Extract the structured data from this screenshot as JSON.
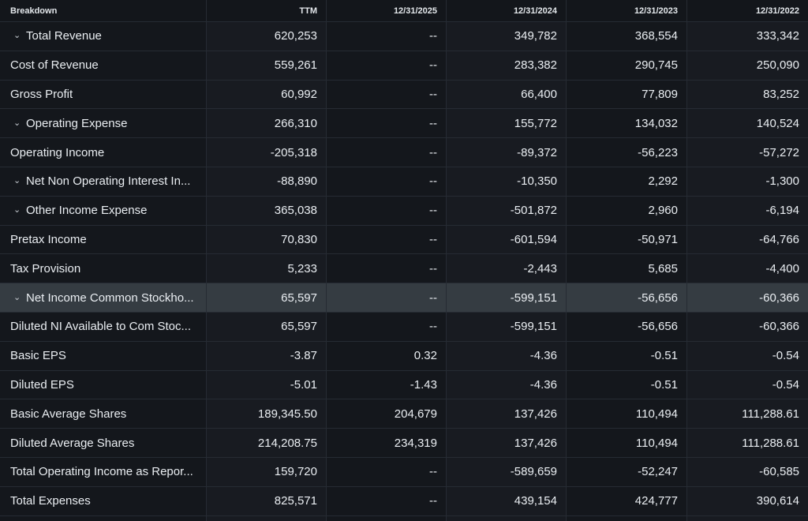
{
  "columns": [
    "Breakdown",
    "TTM",
    "12/31/2025",
    "12/31/2024",
    "12/31/2023",
    "12/31/2022"
  ],
  "rows": [
    {
      "label": "Total Revenue",
      "expandable": true,
      "values": [
        "620,253",
        "--",
        "349,782",
        "368,554",
        "333,342"
      ]
    },
    {
      "label": "Cost of Revenue",
      "expandable": false,
      "values": [
        "559,261",
        "--",
        "283,382",
        "290,745",
        "250,090"
      ]
    },
    {
      "label": "Gross Profit",
      "expandable": false,
      "values": [
        "60,992",
        "--",
        "66,400",
        "77,809",
        "83,252"
      ]
    },
    {
      "label": "Operating Expense",
      "expandable": true,
      "values": [
        "266,310",
        "--",
        "155,772",
        "134,032",
        "140,524"
      ]
    },
    {
      "label": "Operating Income",
      "expandable": false,
      "values": [
        "-205,318",
        "--",
        "-89,372",
        "-56,223",
        "-57,272"
      ]
    },
    {
      "label": "Net Non Operating Interest In...",
      "expandable": true,
      "values": [
        "-88,890",
        "--",
        "-10,350",
        "2,292",
        "-1,300"
      ]
    },
    {
      "label": "Other Income Expense",
      "expandable": true,
      "values": [
        "365,038",
        "--",
        "-501,872",
        "2,960",
        "-6,194"
      ]
    },
    {
      "label": "Pretax Income",
      "expandable": false,
      "values": [
        "70,830",
        "--",
        "-601,594",
        "-50,971",
        "-64,766"
      ]
    },
    {
      "label": "Tax Provision",
      "expandable": false,
      "values": [
        "5,233",
        "--",
        "-2,443",
        "5,685",
        "-4,400"
      ]
    },
    {
      "label": "Net Income Common Stockho...",
      "expandable": true,
      "highlight": true,
      "values": [
        "65,597",
        "--",
        "-599,151",
        "-56,656",
        "-60,366"
      ]
    },
    {
      "label": "Diluted NI Available to Com Stoc...",
      "expandable": false,
      "values": [
        "65,597",
        "--",
        "-599,151",
        "-56,656",
        "-60,366"
      ]
    },
    {
      "label": "Basic EPS",
      "expandable": false,
      "values": [
        "-3.87",
        "0.32",
        "-4.36",
        "-0.51",
        "-0.54"
      ]
    },
    {
      "label": "Diluted EPS",
      "expandable": false,
      "values": [
        "-5.01",
        "-1.43",
        "-4.36",
        "-0.51",
        "-0.54"
      ]
    },
    {
      "label": "Basic Average Shares",
      "expandable": false,
      "values": [
        "189,345.50",
        "204,679",
        "137,426",
        "110,494",
        "111,288.61"
      ]
    },
    {
      "label": "Diluted Average Shares",
      "expandable": false,
      "values": [
        "214,208.75",
        "234,319",
        "137,426",
        "110,494",
        "111,288.61"
      ]
    },
    {
      "label": "Total Operating Income as Repor...",
      "expandable": false,
      "values": [
        "159,720",
        "--",
        "-589,659",
        "-52,247",
        "-60,585"
      ]
    },
    {
      "label": "Total Expenses",
      "expandable": false,
      "values": [
        "825,571",
        "--",
        "439,154",
        "424,777",
        "390,614"
      ]
    },
    {
      "label": "",
      "expandable": false,
      "values": [
        "",
        "",
        "",
        "",
        ""
      ]
    }
  ],
  "icons": {
    "expand": "chevron-down-icon"
  },
  "colors": {
    "background": "#0e1116",
    "highlight_row": "#353c42",
    "text": "#eaeef2"
  }
}
